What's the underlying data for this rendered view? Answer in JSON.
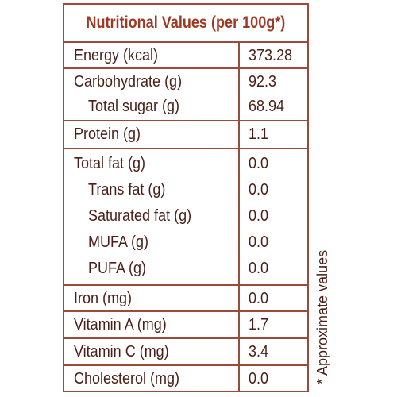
{
  "table": {
    "title": "Nutritional Values (per 100g*)",
    "rows": [
      {
        "label": "Energy (kcal)",
        "value": "373.28"
      },
      {
        "label": "Carbohydrate (g)",
        "value": "92.3"
      },
      {
        "label": "Total sugar (g)",
        "value": "68.94"
      },
      {
        "label": "Protein (g)",
        "value": "1.1"
      },
      {
        "label": "Total fat (g)",
        "value": "0.0"
      },
      {
        "label": "Trans fat (g)",
        "value": "0.0"
      },
      {
        "label": "Saturated fat (g)",
        "value": "0.0"
      },
      {
        "label": "MUFA (g)",
        "value": "0.0"
      },
      {
        "label": "PUFA (g)",
        "value": "0.0"
      },
      {
        "label": "Iron (mg)",
        "value": "0.0"
      },
      {
        "label": "Vitamin A (mg)",
        "value": "1.7"
      },
      {
        "label": "Vitamin C (mg)",
        "value": "3.4"
      },
      {
        "label": "Cholesterol (mg)",
        "value": "0.0"
      }
    ]
  },
  "footnote": "* Approximate values",
  "colors": {
    "border": "#9c4a3a",
    "title": "#9c3a24",
    "text": "#4a1f17"
  }
}
